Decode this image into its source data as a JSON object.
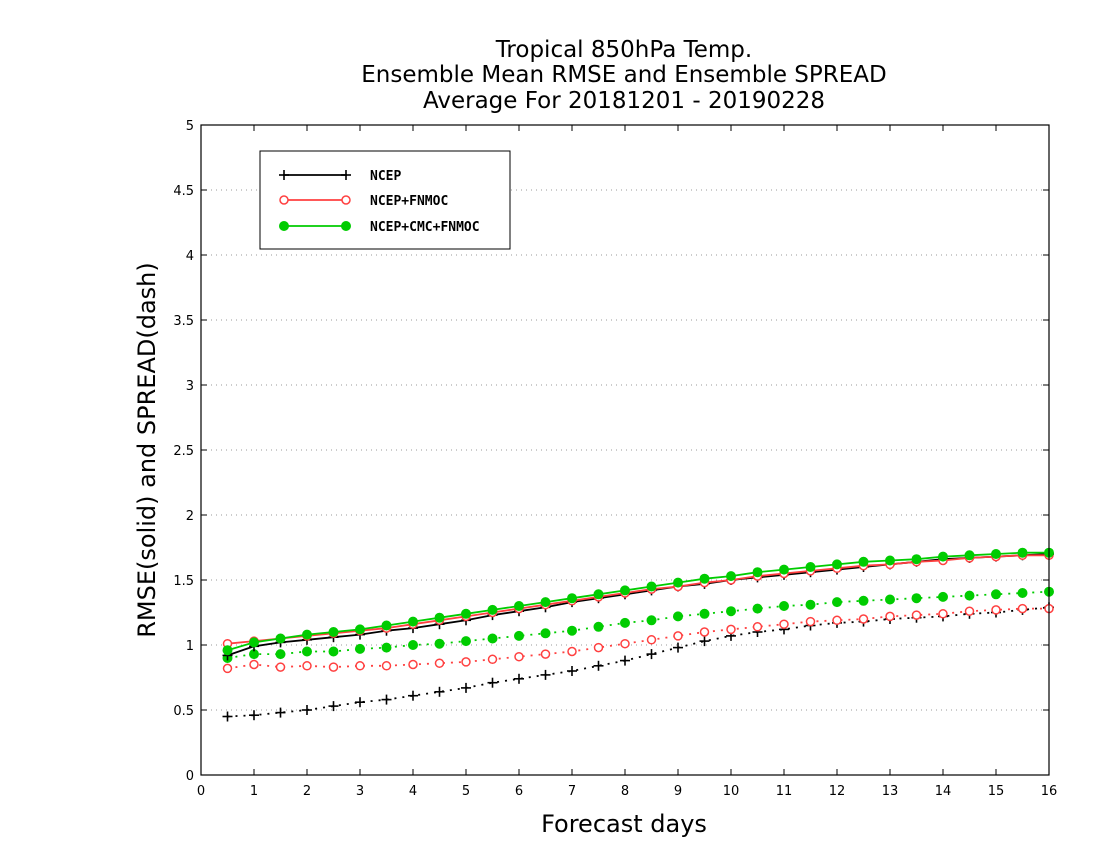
{
  "chart_data": {
    "type": "line",
    "title_lines": [
      "Tropical 850hPa Temp.",
      "Ensemble Mean RMSE and Ensemble SPREAD",
      "Average For 20181201 - 20190228"
    ],
    "xlabel": "Forecast days",
    "ylabel": "RMSE(solid) and SPREAD(dash)",
    "xlim": [
      0,
      16
    ],
    "ylim": [
      0,
      5
    ],
    "x_ticks": [
      "0",
      "1",
      "2",
      "3",
      "4",
      "5",
      "6",
      "7",
      "8",
      "9",
      "10",
      "11",
      "12",
      "13",
      "14",
      "15",
      "16"
    ],
    "y_ticks": [
      "0",
      "0.5",
      "1",
      "1.5",
      "2",
      "2.5",
      "3",
      "3.5",
      "4",
      "4.5",
      "5"
    ],
    "grid": "horizontal dotted",
    "legend_position": "top-left",
    "x": [
      0.5,
      1,
      1.5,
      2,
      2.5,
      3,
      3.5,
      4,
      4.5,
      5,
      5.5,
      6,
      6.5,
      7,
      7.5,
      8,
      8.5,
      9,
      9.5,
      10,
      10.5,
      11,
      11.5,
      12,
      12.5,
      13,
      13.5,
      14,
      14.5,
      15,
      15.5,
      16
    ],
    "series": [
      {
        "name": "NCEP",
        "color": "#000000",
        "marker": "plus",
        "rmse": [
          0.92,
          0.99,
          1.02,
          1.04,
          1.06,
          1.08,
          1.11,
          1.13,
          1.16,
          1.19,
          1.23,
          1.26,
          1.29,
          1.33,
          1.36,
          1.39,
          1.42,
          1.45,
          1.47,
          1.5,
          1.52,
          1.54,
          1.56,
          1.58,
          1.6,
          1.62,
          1.64,
          1.66,
          1.67,
          1.68,
          1.69,
          1.7
        ],
        "spread": [
          0.45,
          0.46,
          0.48,
          0.5,
          0.53,
          0.56,
          0.58,
          0.61,
          0.64,
          0.67,
          0.71,
          0.74,
          0.77,
          0.8,
          0.84,
          0.88,
          0.93,
          0.98,
          1.03,
          1.07,
          1.1,
          1.12,
          1.15,
          1.17,
          1.18,
          1.2,
          1.21,
          1.22,
          1.24,
          1.25,
          1.27,
          1.29
        ]
      },
      {
        "name": "NCEP+FNMOC",
        "color": "#ff4040",
        "marker": "open-circle",
        "rmse": [
          1.01,
          1.03,
          1.05,
          1.07,
          1.09,
          1.11,
          1.13,
          1.16,
          1.19,
          1.22,
          1.25,
          1.28,
          1.31,
          1.34,
          1.37,
          1.4,
          1.43,
          1.45,
          1.48,
          1.5,
          1.53,
          1.55,
          1.57,
          1.59,
          1.61,
          1.62,
          1.64,
          1.65,
          1.67,
          1.68,
          1.69,
          1.69
        ],
        "spread": [
          0.82,
          0.85,
          0.83,
          0.84,
          0.83,
          0.84,
          0.84,
          0.85,
          0.86,
          0.87,
          0.89,
          0.91,
          0.93,
          0.95,
          0.98,
          1.01,
          1.04,
          1.07,
          1.1,
          1.12,
          1.14,
          1.16,
          1.18,
          1.19,
          1.2,
          1.22,
          1.23,
          1.24,
          1.26,
          1.27,
          1.28,
          1.28
        ]
      },
      {
        "name": "NCEP+CMC+FNMOC",
        "color": "#00cc00",
        "marker": "filled-circle",
        "rmse": [
          0.96,
          1.02,
          1.05,
          1.08,
          1.1,
          1.12,
          1.15,
          1.18,
          1.21,
          1.24,
          1.27,
          1.3,
          1.33,
          1.36,
          1.39,
          1.42,
          1.45,
          1.48,
          1.51,
          1.53,
          1.56,
          1.58,
          1.6,
          1.62,
          1.64,
          1.65,
          1.66,
          1.68,
          1.69,
          1.7,
          1.71,
          1.71
        ],
        "spread": [
          0.9,
          0.93,
          0.93,
          0.95,
          0.95,
          0.97,
          0.98,
          1.0,
          1.01,
          1.03,
          1.05,
          1.07,
          1.09,
          1.11,
          1.14,
          1.17,
          1.19,
          1.22,
          1.24,
          1.26,
          1.28,
          1.3,
          1.31,
          1.33,
          1.34,
          1.35,
          1.36,
          1.37,
          1.38,
          1.39,
          1.4,
          1.41
        ]
      }
    ]
  }
}
